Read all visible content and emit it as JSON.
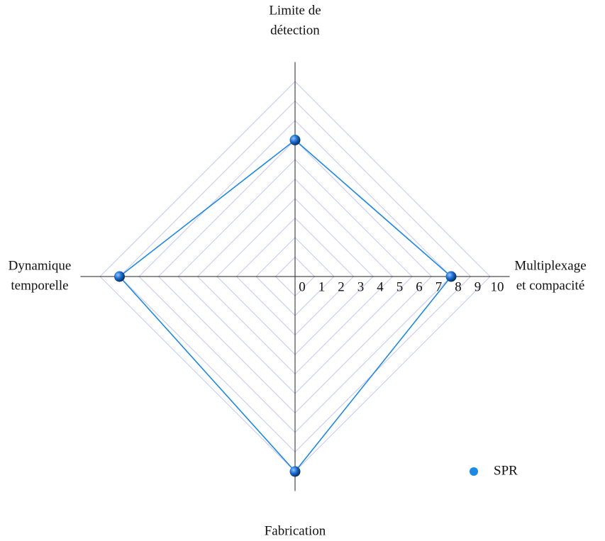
{
  "chart_data": {
    "type": "radar",
    "categories": [
      [
        "Limite de",
        "détection"
      ],
      [
        "Multiplexage",
        "et compacité"
      ],
      [
        "Fabrication"
      ],
      [
        "Dynamique",
        "temporelle"
      ]
    ],
    "series": [
      {
        "name": "SPR",
        "color": "#1e88e5",
        "values": [
          7,
          8,
          10,
          9
        ]
      }
    ],
    "rlim": [
      0,
      10
    ],
    "rticks": [
      0,
      1,
      2,
      3,
      4,
      5,
      6,
      7,
      8,
      9,
      10
    ],
    "grid": true,
    "legend": "lower right"
  }
}
